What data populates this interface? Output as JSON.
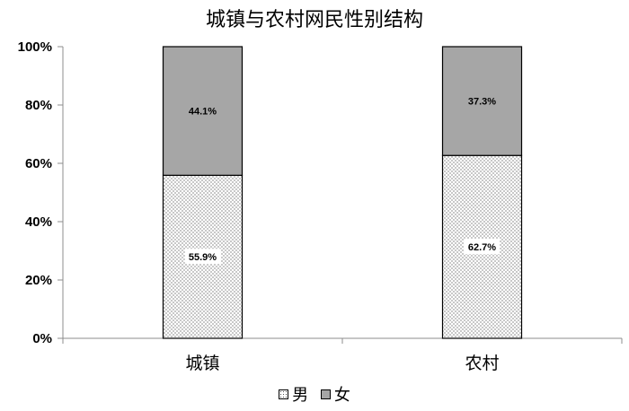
{
  "chart_data": {
    "type": "bar",
    "stacked": true,
    "title": "城镇与农村网民性别结构",
    "categories": [
      "城镇",
      "农村"
    ],
    "series": [
      {
        "name": "男",
        "values": [
          55.9,
          62.7
        ],
        "labels": [
          "55.9%",
          "62.7%"
        ],
        "color": "#ffffff",
        "pattern": "dots"
      },
      {
        "name": "女",
        "values": [
          44.1,
          37.3
        ],
        "labels": [
          "44.1%",
          "37.3%"
        ],
        "color": "#a6a6a6"
      }
    ],
    "ylim": [
      0,
      100
    ],
    "yticks": [
      "0%",
      "20%",
      "40%",
      "60%",
      "80%",
      "100%"
    ],
    "grid": false,
    "legend": "bottom"
  }
}
